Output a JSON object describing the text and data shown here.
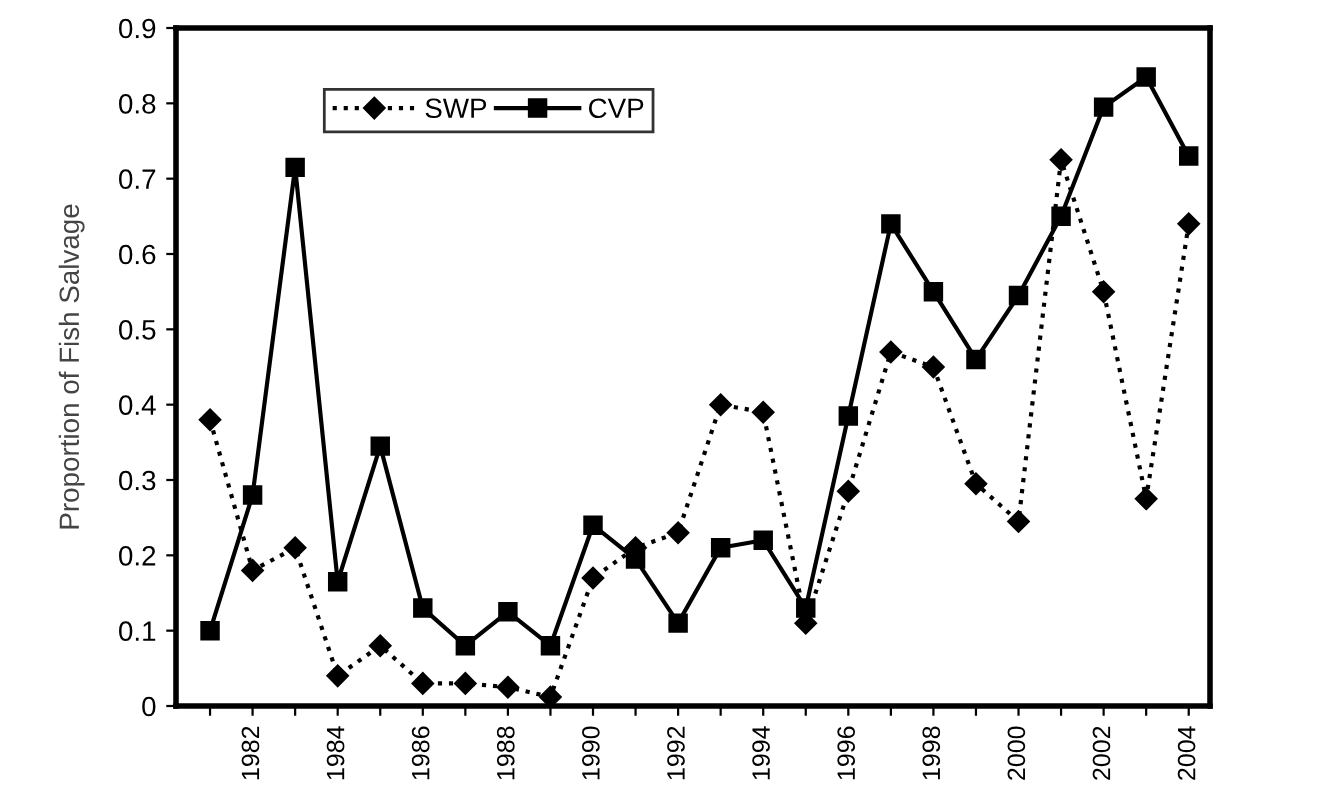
{
  "chart_data": {
    "type": "line",
    "ylabel": "Proportion of Fish Salvage",
    "categories": [
      null,
      "1982",
      null,
      "1984",
      null,
      "1986",
      null,
      "1988",
      null,
      "1990",
      null,
      "1992",
      null,
      "1994",
      null,
      "1996",
      null,
      "1998",
      null,
      "2000",
      null,
      "2002",
      null,
      "2004"
    ],
    "series": [
      {
        "name": "SWP",
        "color": "#000000",
        "marker": "diamond",
        "line_style": "dotted",
        "values": [
          0.38,
          0.18,
          0.21,
          0.04,
          0.08,
          0.03,
          0.03,
          0.025,
          0.012,
          0.17,
          0.21,
          0.23,
          0.4,
          0.39,
          0.11,
          0.285,
          0.47,
          0.45,
          0.295,
          0.245,
          0.725,
          0.55,
          0.275,
          0.64
        ]
      },
      {
        "name": "CVP",
        "color": "#000000",
        "marker": "square",
        "line_style": "solid",
        "values": [
          0.1,
          0.28,
          0.715,
          0.165,
          0.345,
          0.13,
          0.08,
          0.125,
          0.08,
          0.24,
          0.195,
          0.11,
          0.21,
          0.22,
          0.13,
          0.385,
          0.64,
          0.55,
          0.46,
          0.545,
          0.65,
          0.795,
          0.835,
          0.73
        ]
      }
    ],
    "ylim": [
      0,
      0.9
    ],
    "yticks": [
      0,
      0.1,
      0.2,
      0.3,
      0.4,
      0.5,
      0.6,
      0.7,
      0.8,
      0.9
    ],
    "grid": false,
    "legend": "top left"
  }
}
